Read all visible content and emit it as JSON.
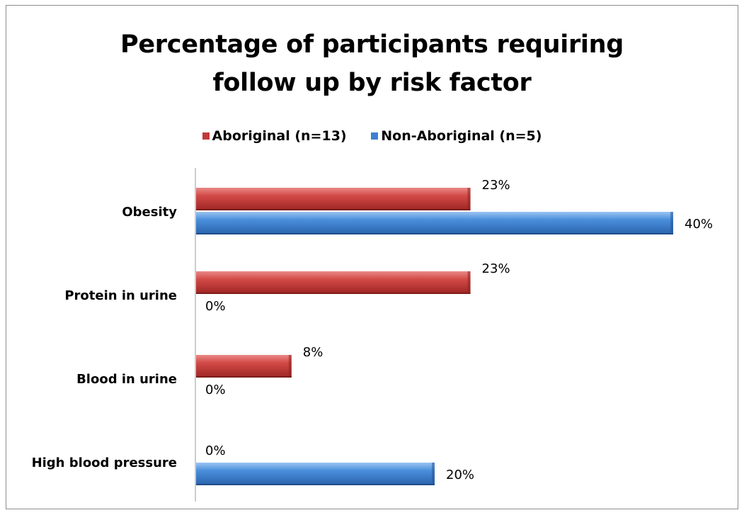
{
  "chart_data": {
    "type": "bar",
    "orientation": "horizontal",
    "title_lines": [
      "Percentage of participants requiring",
      "follow up by risk factor"
    ],
    "categories": [
      "Obesity",
      "Protein in urine",
      "Blood in urine",
      "High blood pressure"
    ],
    "series": [
      {
        "name": "Aboriginal (n=13)",
        "color": "#c0393b",
        "values": [
          23,
          23,
          8,
          0
        ],
        "labels": [
          "23%",
          "23%",
          "8%",
          "0%"
        ]
      },
      {
        "name": "Non-Aboriginal (n=5)",
        "color": "#3d7fd0",
        "values": [
          40,
          0,
          0,
          20
        ],
        "labels": [
          "40%",
          "0%",
          "0%",
          "20%"
        ]
      }
    ],
    "xlim": [
      0,
      40
    ],
    "legend_position": "top",
    "grid": false,
    "colors": {
      "aboriginal": "#c0393b",
      "non_aboriginal": "#3d7fd0"
    }
  }
}
